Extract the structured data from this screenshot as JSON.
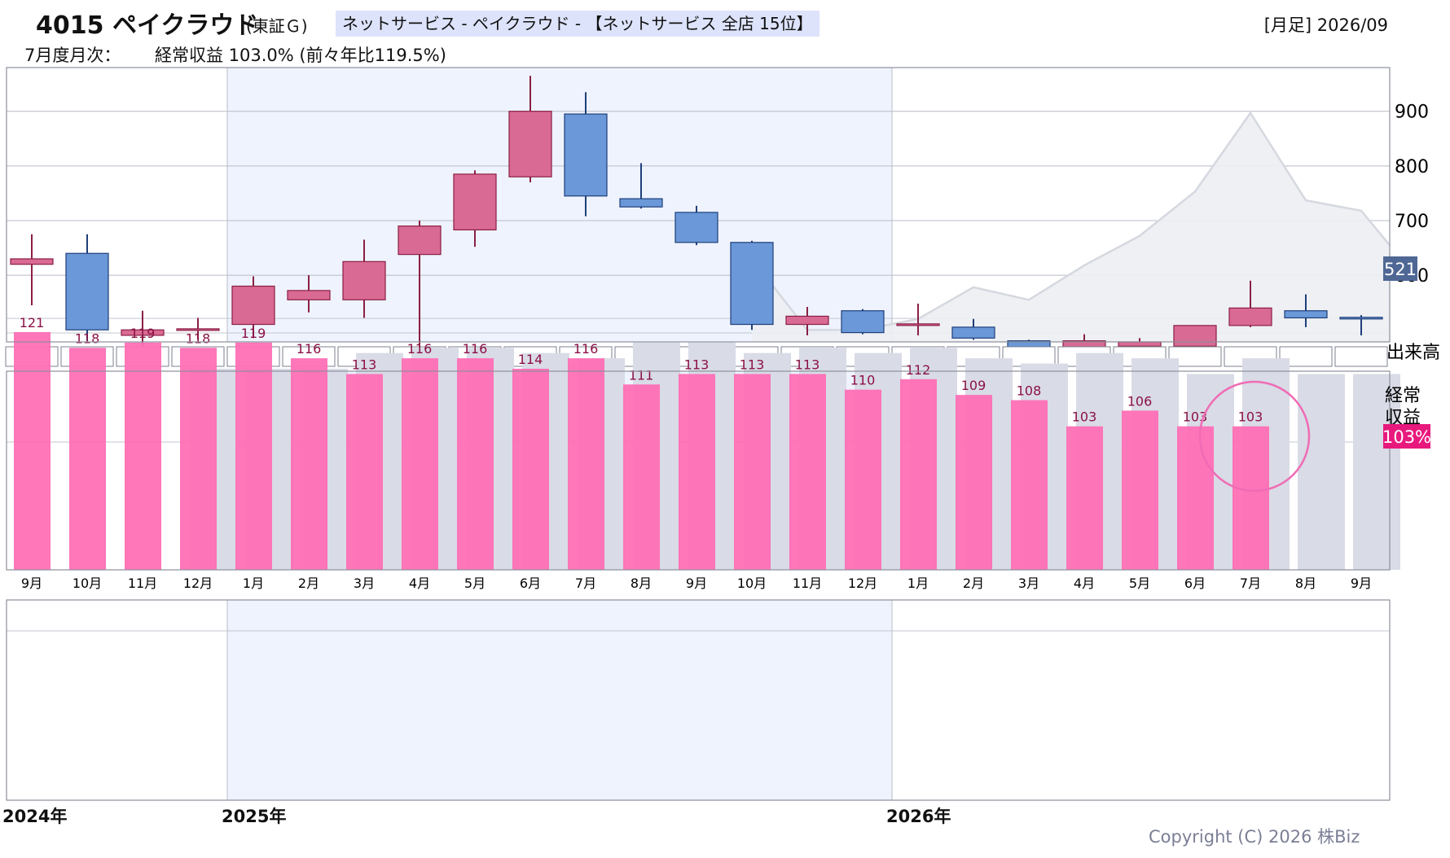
{
  "header": {
    "code_name": "4015 ペイクラウド",
    "market": "(東証Ｇ)",
    "sector": "ネットサービス - ペイクラウド - 【ネットサービス 全店 15位】",
    "timeframe": "[月足] 2026/09",
    "monthly_label": "7月度月次：",
    "monthly_value": "経常収益 103.0% (前々年比119.5%)"
  },
  "side_labels": {
    "volume": "出来高",
    "revenue_line1": "経常",
    "revenue_line2": "収益",
    "revenue_badge": "103%",
    "price_badge": "521"
  },
  "years": [
    "2024年",
    "2025年",
    "2026年"
  ],
  "copyright": "Copyright (C) 2026 株Biz",
  "colors": {
    "up": "#d96a93",
    "down": "#6a98d8",
    "revenue_bar": "#ff6fb5",
    "prev_bar": "#d9dbe6",
    "shade": "#eef3fd",
    "circle": "#f06bb5",
    "badge_price": "#4f6795",
    "badge_revenue": "#e8197d"
  },
  "chart_data": {
    "type": "candlestick",
    "categories": [
      "9月",
      "10月",
      "11月",
      "12月",
      "1月",
      "2月",
      "3月",
      "4月",
      "5月",
      "6月",
      "7月",
      "8月",
      "9月",
      "10月",
      "11月",
      "12月",
      "1月",
      "2月",
      "3月",
      "4月",
      "5月",
      "6月",
      "7月",
      "8月",
      "9月"
    ],
    "y_ticks": [
      900,
      800,
      700,
      600
    ],
    "ylim": [
      478,
      980
    ],
    "last_price": 521,
    "ohlc": [
      {
        "o": 620,
        "h": 675,
        "l": 545,
        "c": 630
      },
      {
        "o": 640,
        "h": 675,
        "l": 480,
        "c": 500
      },
      {
        "o": 490,
        "h": 535,
        "l": 470,
        "c": 500
      },
      {
        "o": 500,
        "h": 522,
        "l": 482,
        "c": 502
      },
      {
        "o": 510,
        "h": 598,
        "l": 485,
        "c": 580
      },
      {
        "o": 555,
        "h": 600,
        "l": 532,
        "c": 572
      },
      {
        "o": 555,
        "h": 665,
        "l": 522,
        "c": 625
      },
      {
        "o": 638,
        "h": 700,
        "l": 470,
        "c": 690
      },
      {
        "o": 683,
        "h": 792,
        "l": 652,
        "c": 785
      },
      {
        "o": 780,
        "h": 965,
        "l": 770,
        "c": 900
      },
      {
        "o": 895,
        "h": 935,
        "l": 708,
        "c": 745
      },
      {
        "o": 740,
        "h": 805,
        "l": 722,
        "c": 725
      },
      {
        "o": 715,
        "h": 727,
        "l": 655,
        "c": 660
      },
      {
        "o": 660,
        "h": 663,
        "l": 500,
        "c": 510
      },
      {
        "o": 510,
        "h": 542,
        "l": 490,
        "c": 525
      },
      {
        "o": 535,
        "h": 538,
        "l": 492,
        "c": 495
      },
      {
        "o": 510,
        "h": 548,
        "l": 490,
        "c": 511
      },
      {
        "o": 505,
        "h": 520,
        "l": 482,
        "c": 485
      },
      {
        "o": 480,
        "h": 482,
        "l": 455,
        "c": 458
      },
      {
        "o": 468,
        "h": 492,
        "l": 430,
        "c": 480
      },
      {
        "o": 470,
        "h": 485,
        "l": 446,
        "c": 478
      },
      {
        "o": 470,
        "h": 508,
        "l": 470,
        "c": 508
      },
      {
        "o": 508,
        "h": 590,
        "l": 505,
        "c": 540
      },
      {
        "o": 535,
        "h": 565,
        "l": 505,
        "c": 522
      },
      {
        "o": 523,
        "h": 527,
        "l": 490,
        "c": 520
      }
    ],
    "reference_line": [
      null,
      null,
      null,
      null,
      null,
      null,
      null,
      null,
      null,
      null,
      null,
      null,
      null,
      630,
      500,
      500,
      520,
      578,
      555,
      618,
      672,
      753,
      897,
      737,
      718
    ],
    "reference_end": 655,
    "revenue": {
      "label": "経常収益",
      "values": [
        121,
        118,
        119,
        118,
        119,
        116,
        113,
        116,
        116,
        114,
        116,
        111,
        113,
        113,
        113,
        110,
        112,
        109,
        108,
        103,
        106,
        103,
        103,
        null,
        null
      ],
      "prev_values": [
        null,
        null,
        null,
        114,
        114,
        114,
        117,
        118,
        118,
        117,
        116,
        119,
        119,
        117,
        118,
        117,
        118,
        116,
        115,
        117,
        116,
        113,
        116,
        113,
        113
      ]
    }
  }
}
